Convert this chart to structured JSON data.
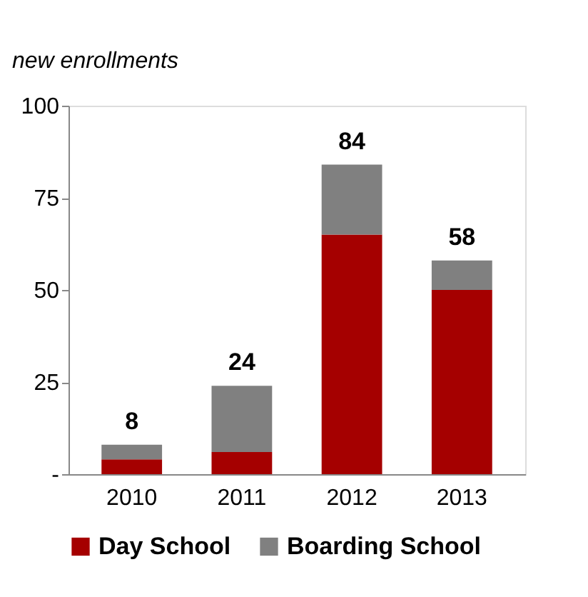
{
  "chart_data": {
    "type": "bar",
    "ylabel": "new enrollments",
    "categories": [
      "2010",
      "2011",
      "2012",
      "2013"
    ],
    "series": [
      {
        "name": "Day School",
        "color": "#a50000",
        "values": [
          4,
          6,
          65,
          50
        ]
      },
      {
        "name": "Boarding School",
        "color": "#808080",
        "values": [
          4,
          18,
          19,
          8
        ]
      }
    ],
    "stacked": true,
    "totals": [
      "8",
      "24",
      "84",
      "58"
    ],
    "ylim": [
      0,
      100
    ],
    "yticks": [
      {
        "value": 0,
        "label": "-"
      },
      25,
      50,
      75,
      100
    ],
    "grid": false,
    "legend": "bottom"
  }
}
